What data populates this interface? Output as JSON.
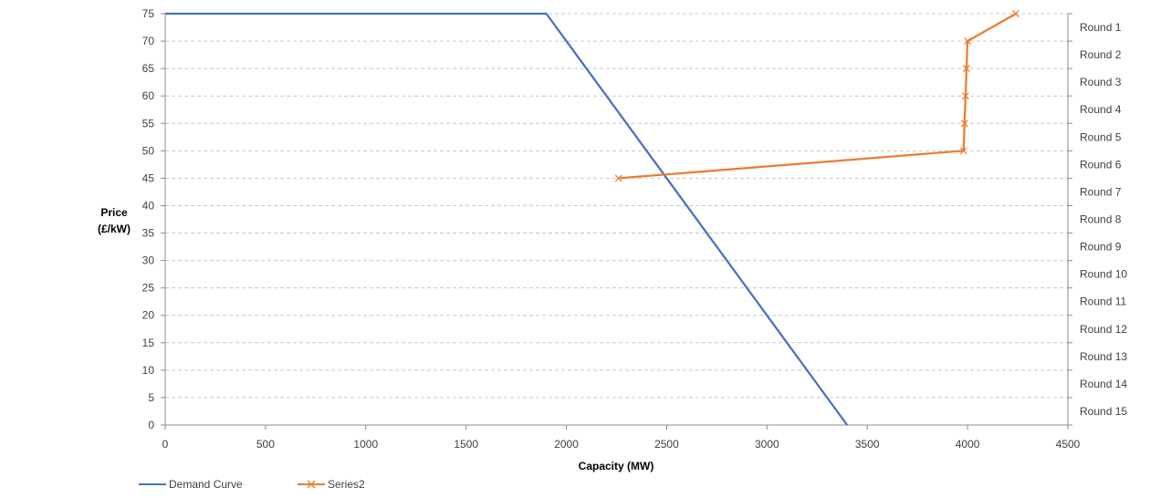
{
  "chart_data": {
    "type": "line",
    "xlabel": "Capacity (MW)",
    "ylabel_line1": "Price",
    "ylabel_line2": "(£/kW)",
    "xlim": [
      0,
      4500
    ],
    "ylim": [
      0,
      75
    ],
    "x_ticks": [
      0,
      500,
      1000,
      1500,
      2000,
      2500,
      3000,
      3500,
      4000,
      4500
    ],
    "y_ticks": [
      0,
      5,
      10,
      15,
      20,
      25,
      30,
      35,
      40,
      45,
      50,
      55,
      60,
      65,
      70,
      75
    ],
    "grid": "horizontal dashed",
    "legend_position": "bottom-left",
    "right_labels": [
      "Round 1",
      "Round 2",
      "Round 3",
      "Round 4",
      "Round 5",
      "Round 6",
      "Round 7",
      "Round 8",
      "Round 9",
      "Round 10",
      "Round 11",
      "Round 12",
      "Round 13",
      "Round 14",
      "Round 15"
    ],
    "series": [
      {
        "name": "Demand Curve",
        "color": "#4472C4",
        "marker": "none",
        "points": [
          [
            0,
            75
          ],
          [
            1900,
            75
          ],
          [
            3400,
            0
          ]
        ]
      },
      {
        "name": "Series2",
        "color": "#ED7D31",
        "marker": "x",
        "points": [
          [
            4240,
            75
          ],
          [
            4000,
            70
          ],
          [
            3995,
            65
          ],
          [
            3990,
            60
          ],
          [
            3985,
            55
          ],
          [
            3980,
            50
          ],
          [
            2260,
            45
          ]
        ]
      }
    ]
  }
}
